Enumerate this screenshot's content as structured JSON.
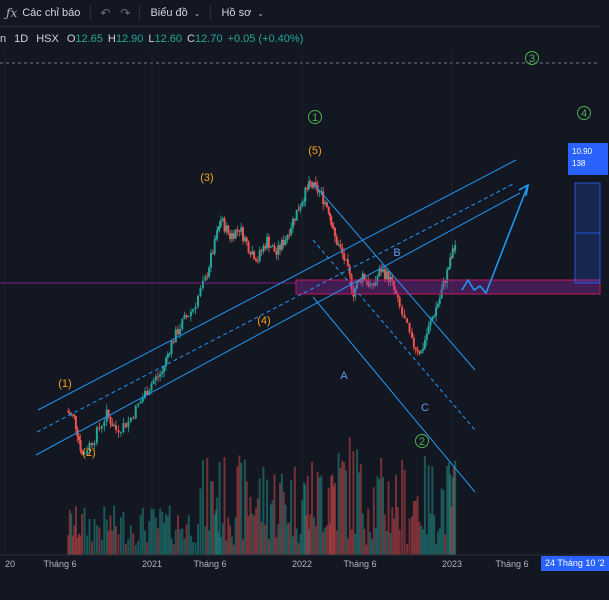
{
  "toolbar": {
    "indicators_label": "Các chỉ báo",
    "chart_label": "Biểu đồ",
    "profile_label": "Hồ sơ"
  },
  "legend": {
    "symbol": "n",
    "interval": "1D",
    "exchange": "HSX",
    "open_label": "O",
    "open_value": "12.65",
    "high_label": "H",
    "high_value": "12.90",
    "low_label": "L",
    "low_value": "12.60",
    "close_label": "C",
    "close_value": "12.70",
    "change": "+0.05 (+0.40%)"
  },
  "price_box": {
    "line1": "10.90",
    "line2": "138"
  },
  "date_badge": "24 Tháng 10 '2",
  "colors": {
    "background": "#131722",
    "up": "#26a69a",
    "down": "#ef5350",
    "channel": "#2196f3",
    "wave_major": "#4caf50",
    "wave_minor": "#f7a21b",
    "corrective": "#5b9cf6",
    "zone": "#9c27b0"
  },
  "chart_data": {
    "type": "candlestick",
    "x_ticks": [
      "20",
      "Tháng 6",
      "2021",
      "Tháng 6",
      "2022",
      "Tháng 6",
      "2023",
      "Tháng 6"
    ],
    "series": [
      {
        "values": [
          [
            2020.4,
            2.15
          ],
          [
            2020.45,
            2.05
          ],
          [
            2020.5,
            1.6
          ],
          [
            2020.58,
            1.8
          ],
          [
            2020.66,
            2.1
          ],
          [
            2020.72,
            1.9
          ],
          [
            2020.8,
            2.0
          ],
          [
            2020.88,
            2.3
          ],
          [
            2020.95,
            2.6
          ],
          [
            2021.02,
            2.8
          ],
          [
            2021.08,
            3.4
          ],
          [
            2021.15,
            3.9
          ],
          [
            2021.22,
            4.3
          ],
          [
            2021.3,
            5.2
          ],
          [
            2021.36,
            6.6
          ],
          [
            2021.4,
            7.8
          ],
          [
            2021.46,
            7.0
          ],
          [
            2021.52,
            7.4
          ],
          [
            2021.58,
            6.5
          ],
          [
            2021.64,
            6.0
          ],
          [
            2021.7,
            6.8
          ],
          [
            2021.76,
            6.2
          ],
          [
            2021.82,
            6.9
          ],
          [
            2021.88,
            8.0
          ],
          [
            2021.94,
            9.2
          ],
          [
            2021.98,
            9.9
          ],
          [
            2022.04,
            9.4
          ],
          [
            2022.1,
            8.4
          ],
          [
            2022.14,
            6.9
          ],
          [
            2022.2,
            6.0
          ],
          [
            2022.26,
            4.8
          ],
          [
            2022.32,
            5.4
          ],
          [
            2022.38,
            4.9
          ],
          [
            2022.44,
            5.6
          ],
          [
            2022.5,
            5.2
          ],
          [
            2022.56,
            4.3
          ],
          [
            2022.64,
            3.4
          ],
          [
            2022.7,
            3.2
          ],
          [
            2022.76,
            3.9
          ],
          [
            2022.82,
            4.6
          ],
          [
            2022.88,
            5.7
          ],
          [
            2022.92,
            6.6
          ]
        ]
      }
    ],
    "wave_labels": {
      "major": [
        "1",
        "2",
        "3",
        "4"
      ],
      "minor": [
        "(1)",
        "(2)",
        "(3)",
        "(4)",
        "(5)"
      ],
      "corrective": [
        "A",
        "B",
        "C"
      ]
    }
  }
}
